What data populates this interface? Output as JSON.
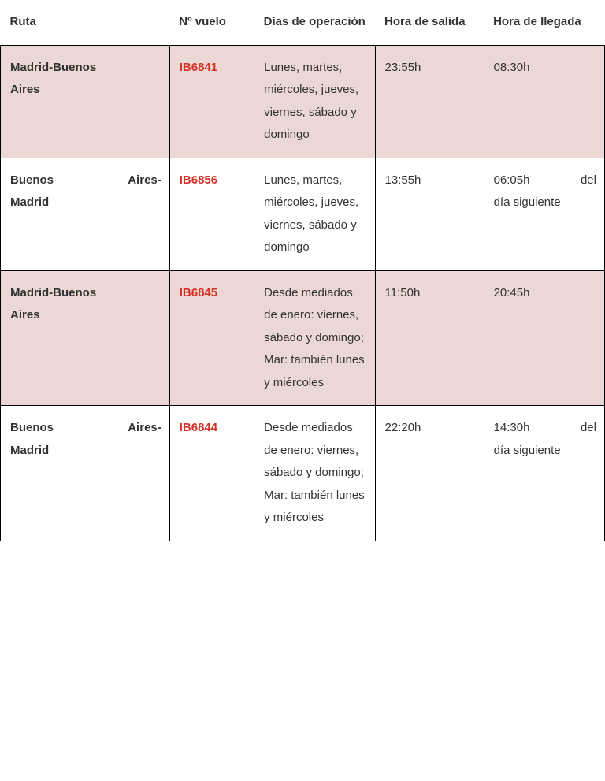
{
  "table": {
    "columns": {
      "route": "Ruta",
      "flight": "Nº vuelo",
      "days": "Días de operación",
      "departure": "Hora de salida",
      "arrival": "Hora de llegada"
    },
    "rows": [
      {
        "route_line1": "Madrid-Buenos",
        "route_line2": "Aires",
        "flight": "IB6841",
        "days": "Lunes, martes, miércoles, jueves, viernes,  sábado y domingo",
        "departure": "23:55h",
        "arrival_line1": "08:30h",
        "arrival_rest": "",
        "row_bg": "pink"
      },
      {
        "route_line1": "Buenos Aires-",
        "route_line2": "Madrid",
        "flight": "IB6856",
        "days": "Lunes, martes, miércoles, jueves, viernes, sábado y domingo",
        "departure": "13:55h",
        "arrival_line1": "06:05h del",
        "arrival_rest": "día siguiente",
        "row_bg": "white"
      },
      {
        "route_line1": "Madrid-Buenos",
        "route_line2": "Aires",
        "flight": "IB6845",
        "days": "Desde mediados de enero: viernes, sábado y domingo; Mar: también lunes y miércoles",
        "departure": "11:50h",
        "arrival_line1": "20:45h",
        "arrival_rest": "",
        "row_bg": "pink"
      },
      {
        "route_line1": "Buenos Aires-",
        "route_line2": "Madrid",
        "flight": "IB6844",
        "days": "Desde mediados de enero: viernes, sábado y domingo; Mar: también lunes y miércoles",
        "departure": "22:20h",
        "arrival_line1": "14:30h del",
        "arrival_rest": "día siguiente",
        "row_bg": "white"
      }
    ],
    "style": {
      "header_bg": "#ffffff",
      "pink_bg": "#ebd7d3",
      "white_bg": "#ffffff",
      "border_color": "#000000",
      "flight_color": "#d93025",
      "text_color": "#333333",
      "font_family": "Verdana",
      "font_size_pt": 11,
      "col_widths_pct": [
        28,
        14,
        20,
        18,
        20
      ]
    }
  }
}
